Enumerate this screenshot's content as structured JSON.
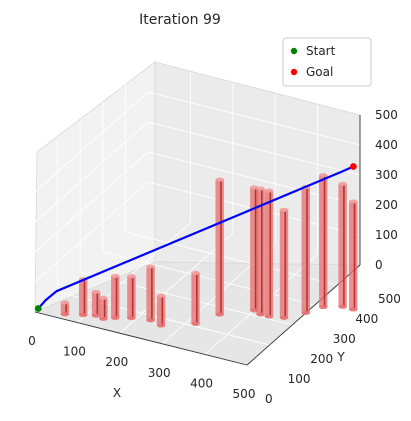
{
  "chart_data": {
    "type": "scatter",
    "projection": "3d",
    "title": "Iteration 99",
    "xlabel": "X",
    "ylabel": "Y",
    "zlabel": "",
    "xlim": [
      0,
      500
    ],
    "ylim": [
      0,
      500
    ],
    "zlim": [
      0,
      500
    ],
    "xticks": [
      "0",
      "100",
      "200",
      "300",
      "400",
      "500"
    ],
    "yticks": [
      "0",
      "100",
      "200",
      "300",
      "400",
      "500"
    ],
    "zticks": [
      "0",
      "100",
      "200",
      "300",
      "400",
      "500"
    ],
    "grid": true,
    "legend_position": "top-right",
    "series": [
      {
        "name": "Start",
        "type": "scatter",
        "color": "#008000",
        "points": [
          [
            5,
            5,
            10
          ]
        ]
      },
      {
        "name": "Goal",
        "type": "scatter",
        "color": "#ff0000",
        "points": [
          [
            495,
            480,
            340
          ]
        ]
      }
    ],
    "path": {
      "color": "#0000ff",
      "points": [
        [
          5,
          5,
          10
        ],
        [
          20,
          10,
          40
        ],
        [
          40,
          20,
          70
        ],
        [
          480,
          465,
          330
        ],
        [
          495,
          480,
          340
        ]
      ]
    },
    "obstacles": {
      "type": "cylinders",
      "color": "#e87070",
      "items": [
        {
          "x": 60,
          "y": 20,
          "height": 40
        },
        {
          "x": 95,
          "y": 35,
          "height": 120
        },
        {
          "x": 120,
          "y": 45,
          "height": 80
        },
        {
          "x": 140,
          "y": 40,
          "height": 70
        },
        {
          "x": 160,
          "y": 55,
          "height": 140
        },
        {
          "x": 190,
          "y": 70,
          "height": 140
        },
        {
          "x": 230,
          "y": 80,
          "height": 180
        },
        {
          "x": 260,
          "y": 70,
          "height": 100
        },
        {
          "x": 320,
          "y": 110,
          "height": 170
        },
        {
          "x": 345,
          "y": 170,
          "height": 450
        },
        {
          "x": 400,
          "y": 220,
          "height": 410
        },
        {
          "x": 420,
          "y": 210,
          "height": 420
        },
        {
          "x": 440,
          "y": 210,
          "height": 420
        },
        {
          "x": 470,
          "y": 220,
          "height": 360
        },
        {
          "x": 500,
          "y": 260,
          "height": 420
        },
        {
          "x": 520,
          "y": 300,
          "height": 440
        },
        {
          "x": 555,
          "y": 320,
          "height": 410
        },
        {
          "x": 580,
          "y": 320,
          "height": 360
        }
      ]
    }
  }
}
